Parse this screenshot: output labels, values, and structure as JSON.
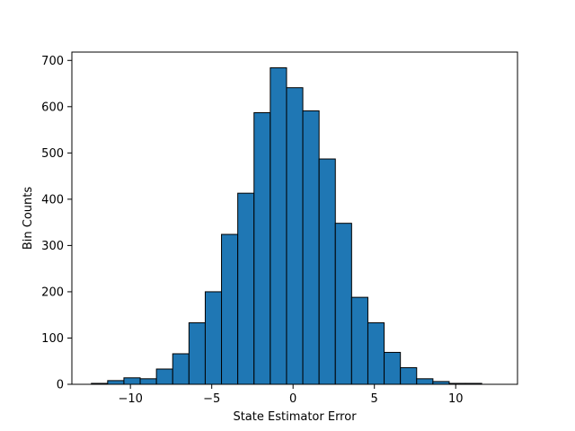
{
  "chart_data": {
    "type": "bar",
    "title": "",
    "xlabel": "State Estimator Error",
    "ylabel": "Bin Counts",
    "bar_color": "#1f77b4",
    "edge_color": "#000000",
    "bin_edges": [
      -12.4,
      -11.4,
      -10.4,
      -9.4,
      -8.4,
      -7.4,
      -6.4,
      -5.4,
      -4.4,
      -3.4,
      -2.4,
      -1.4,
      -0.4,
      0.6,
      1.6,
      2.6,
      3.6,
      4.6,
      5.6,
      6.6,
      7.6,
      8.6,
      9.6,
      10.6,
      11.6,
      12.6
    ],
    "values": [
      2,
      8,
      14,
      12,
      33,
      66,
      133,
      200,
      324,
      413,
      587,
      684,
      641,
      591,
      487,
      348,
      188,
      133,
      69,
      36,
      12,
      6,
      2,
      2,
      0
    ],
    "xlim": [
      -13.6,
      13.8
    ],
    "ylim": [
      0,
      718
    ],
    "xticks": [
      -10,
      -5,
      0,
      5,
      10
    ],
    "xtick_labels": [
      "−10",
      "−5",
      "0",
      "5",
      "10"
    ],
    "yticks": [
      0,
      100,
      200,
      300,
      400,
      500,
      600,
      700
    ],
    "ytick_labels": [
      "0",
      "100",
      "200",
      "300",
      "400",
      "500",
      "600",
      "700"
    ],
    "grid": false
  }
}
